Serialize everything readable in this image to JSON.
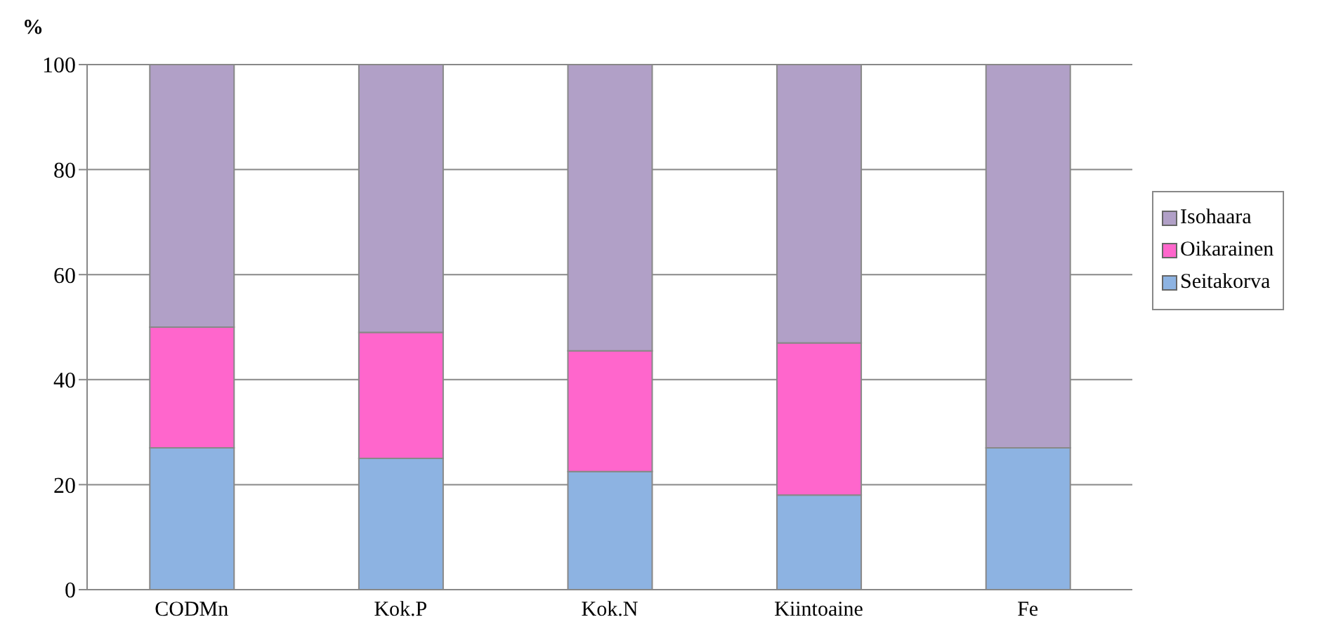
{
  "chart_data": {
    "type": "bar",
    "stacked": true,
    "ylabel": "%",
    "categories": [
      "CODMn",
      "Kok.P",
      "Kok.N",
      "Kiintoaine",
      "Fe"
    ],
    "series": [
      {
        "name": "Seitakorva",
        "color": "#8db3e2",
        "values": [
          27,
          25,
          22.5,
          18,
          27
        ]
      },
      {
        "name": "Oikarainen",
        "color": "#ff66cc",
        "values": [
          23,
          24,
          23,
          29,
          0
        ]
      },
      {
        "name": "Isohaara",
        "color": "#b1a0c7",
        "values": [
          50,
          51,
          54.5,
          53,
          73
        ]
      }
    ],
    "ylim": [
      0,
      100
    ],
    "yticks": [
      0,
      20,
      40,
      60,
      80,
      100
    ],
    "grid": "y",
    "legend": "right"
  }
}
